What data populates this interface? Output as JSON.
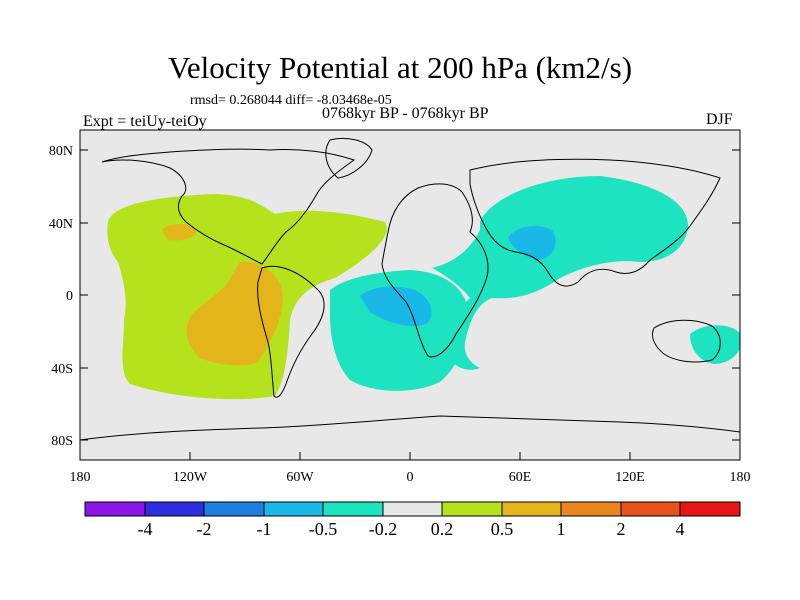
{
  "title": "Velocity Potential at 200 hPa (km2/s)",
  "stats": "rmsd= 0.268044 diff= -8.03468e-05",
  "experiment": "Expt = teiUy-teiOy",
  "period": "0768kyr BP - 0768kyr BP",
  "season": "DJF",
  "lat_ticks": [
    "80N",
    "40N",
    "0",
    "40S",
    "80S"
  ],
  "lon_ticks": [
    "180",
    "120W",
    "60W",
    "0",
    "60E",
    "120E",
    "180"
  ],
  "colorbar": {
    "labels": [
      "-4",
      "-2",
      "-1",
      "-0.5",
      "-0.2",
      "0.2",
      "0.5",
      "1",
      "2",
      "4"
    ],
    "colors": [
      "#8a17e5",
      "#2d2ee0",
      "#1f7fe0",
      "#19b8e6",
      "#1ee3c0",
      "#e8e8e8",
      "#b5e21c",
      "#e3b51a",
      "#e98620",
      "#e8521b",
      "#e61616"
    ]
  },
  "colors": {
    "ocean_bg": "#e8e8e8",
    "pos_weak": "#b5e21c",
    "pos_mid": "#e3b51a",
    "neg_weak": "#1ee3c0",
    "neg_mid": "#19b8e6"
  }
}
